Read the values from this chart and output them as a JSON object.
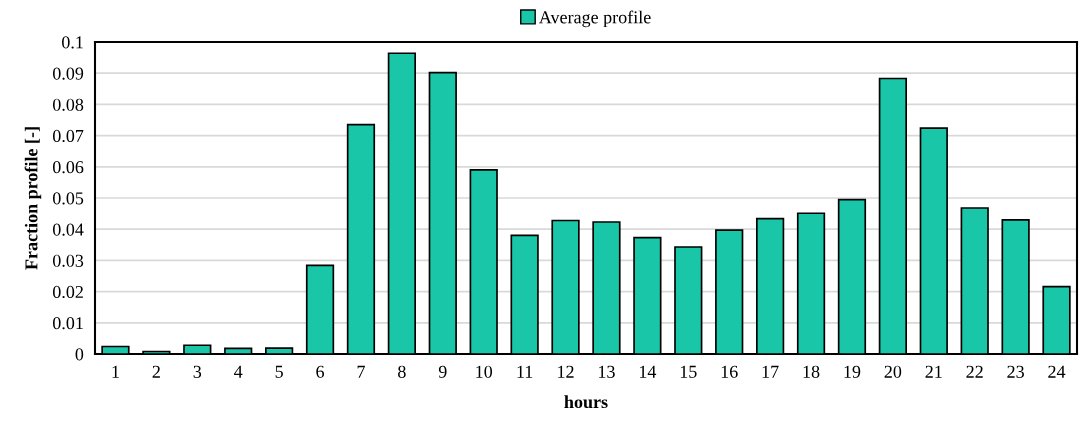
{
  "chart_data": {
    "type": "bar",
    "xlabel": "hours",
    "ylabel": "Fraction profile [-]",
    "categories": [
      "1",
      "2",
      "3",
      "4",
      "5",
      "6",
      "7",
      "8",
      "9",
      "10",
      "11",
      "12",
      "13",
      "14",
      "15",
      "16",
      "17",
      "18",
      "19",
      "20",
      "21",
      "22",
      "23",
      "24"
    ],
    "series": [
      {
        "name": "Average profile",
        "color": "#1ac6a8",
        "values": [
          0.0024,
          0.0008,
          0.0028,
          0.0018,
          0.0019,
          0.0284,
          0.0735,
          0.0964,
          0.0902,
          0.059,
          0.038,
          0.0428,
          0.0423,
          0.0373,
          0.0343,
          0.0397,
          0.0434,
          0.0451,
          0.0495,
          0.0883,
          0.0724,
          0.0468,
          0.043,
          0.0216
        ]
      }
    ],
    "ylim": [
      0,
      0.1
    ],
    "yticks": [
      0,
      0.01,
      0.02,
      0.03,
      0.04,
      0.05,
      0.06,
      0.07,
      0.08,
      0.09,
      0.1
    ],
    "grid": "y",
    "legend": "top"
  }
}
